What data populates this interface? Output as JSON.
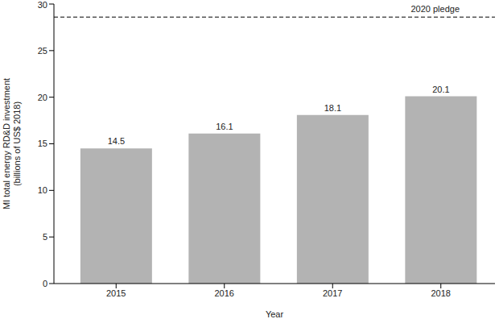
{
  "chart_data": {
    "type": "bar",
    "categories": [
      "2015",
      "2016",
      "2017",
      "2018"
    ],
    "values": [
      14.5,
      16.1,
      18.1,
      20.1
    ],
    "color": "#b3b3b3",
    "xlabel": "Year",
    "ylabel": [
      "MI total energy RD&D investment",
      "(billions of US$ 2018)"
    ],
    "ylim": [
      0,
      30
    ],
    "yticks": [
      0,
      5,
      10,
      15,
      20,
      25,
      30
    ],
    "grid": false,
    "data_labels": true,
    "reference_lines": [
      {
        "value": 28.6,
        "label": "2020 pledge",
        "line_style": "dashed"
      }
    ]
  }
}
